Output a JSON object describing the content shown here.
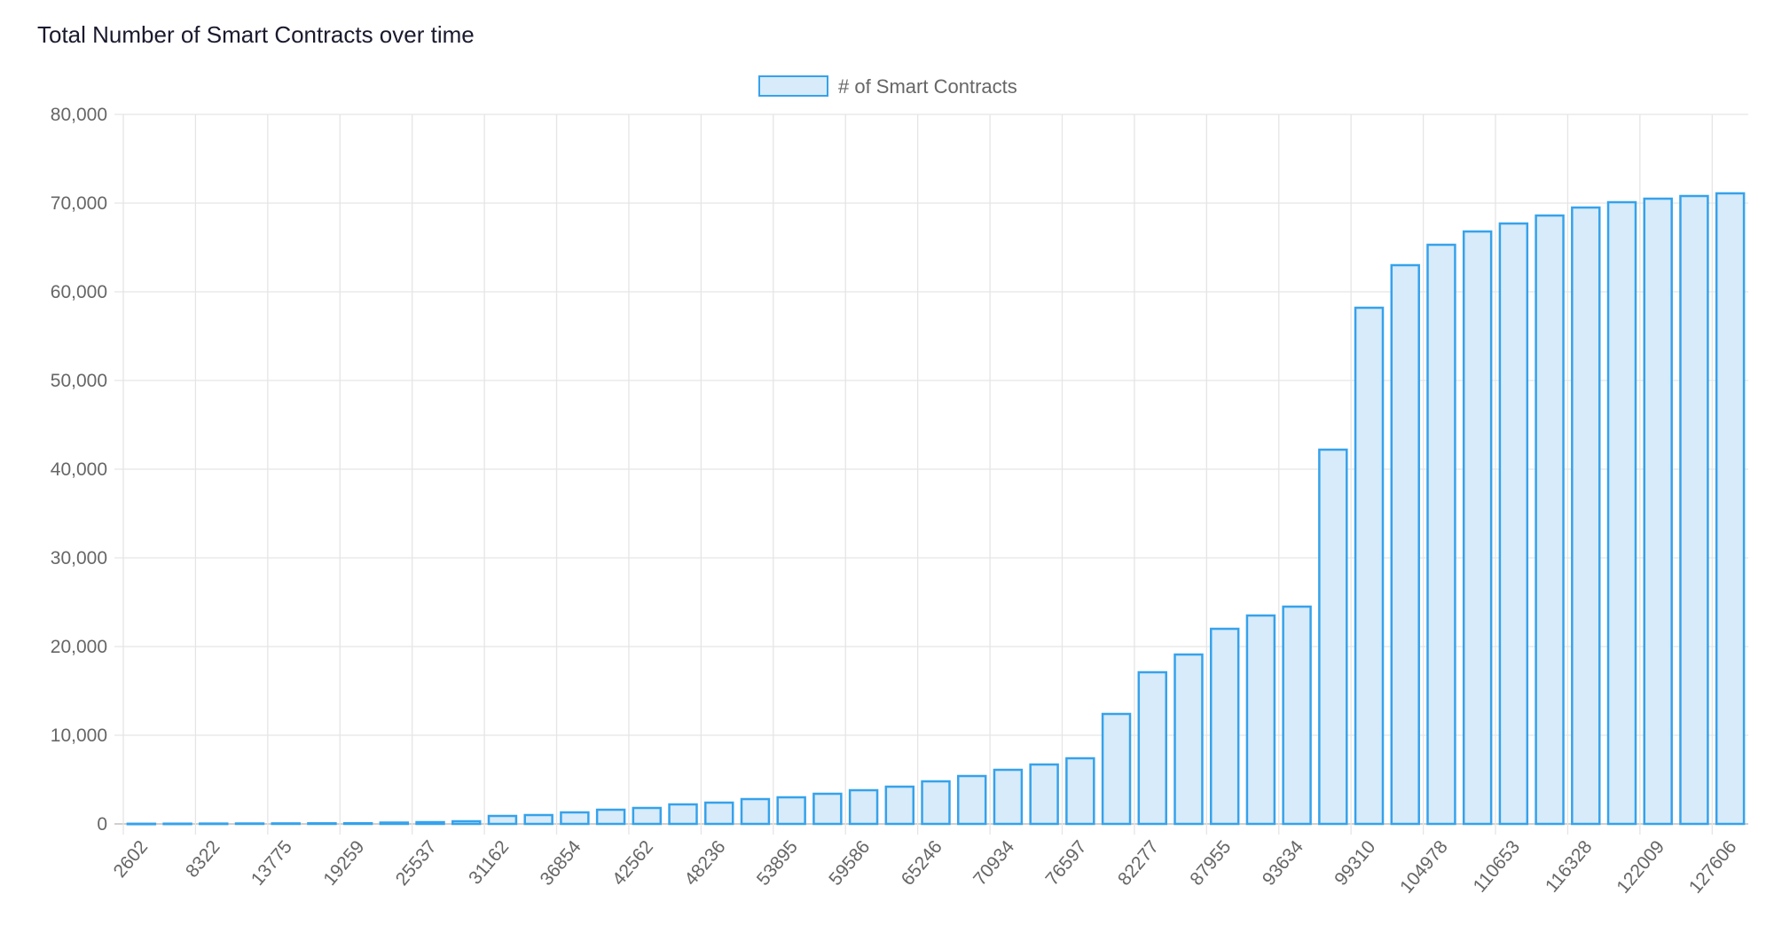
{
  "chart_data": {
    "type": "bar",
    "title": "Total Number of Smart Contracts over time",
    "legend": {
      "position": "top",
      "entries": [
        "# of Smart Contracts"
      ]
    },
    "x_tick_labels": [
      "2602",
      "8322",
      "13775",
      "19259",
      "25537",
      "31162",
      "36854",
      "42562",
      "48236",
      "53895",
      "59586",
      "65246",
      "70934",
      "76597",
      "82277",
      "87955",
      "93634",
      "99310",
      "104978",
      "110653",
      "116328",
      "122009",
      "127606"
    ],
    "x_tick_every_n_bars": 2,
    "series": [
      {
        "name": "# of Smart Contracts",
        "values": [
          20,
          30,
          40,
          50,
          60,
          70,
          80,
          150,
          200,
          300,
          900,
          1000,
          1300,
          1600,
          1800,
          2200,
          2400,
          2800,
          3000,
          3400,
          3800,
          4200,
          4800,
          5400,
          6100,
          6700,
          7400,
          12400,
          17100,
          19100,
          22000,
          23500,
          24500,
          42200,
          58200,
          63000,
          65300,
          66800,
          67700,
          68600,
          69500,
          70100,
          70500,
          70800,
          71100
        ]
      }
    ],
    "ylim": [
      0,
      80000
    ],
    "y_ticks": [
      "0",
      "10,000",
      "20,000",
      "30,000",
      "40,000",
      "50,000",
      "60,000",
      "70,000",
      "80,000"
    ],
    "grid": true,
    "colors": {
      "bar_fill": "#d7ebfa",
      "bar_border": "#36a2eb",
      "grid": "#e5e5e5"
    }
  }
}
